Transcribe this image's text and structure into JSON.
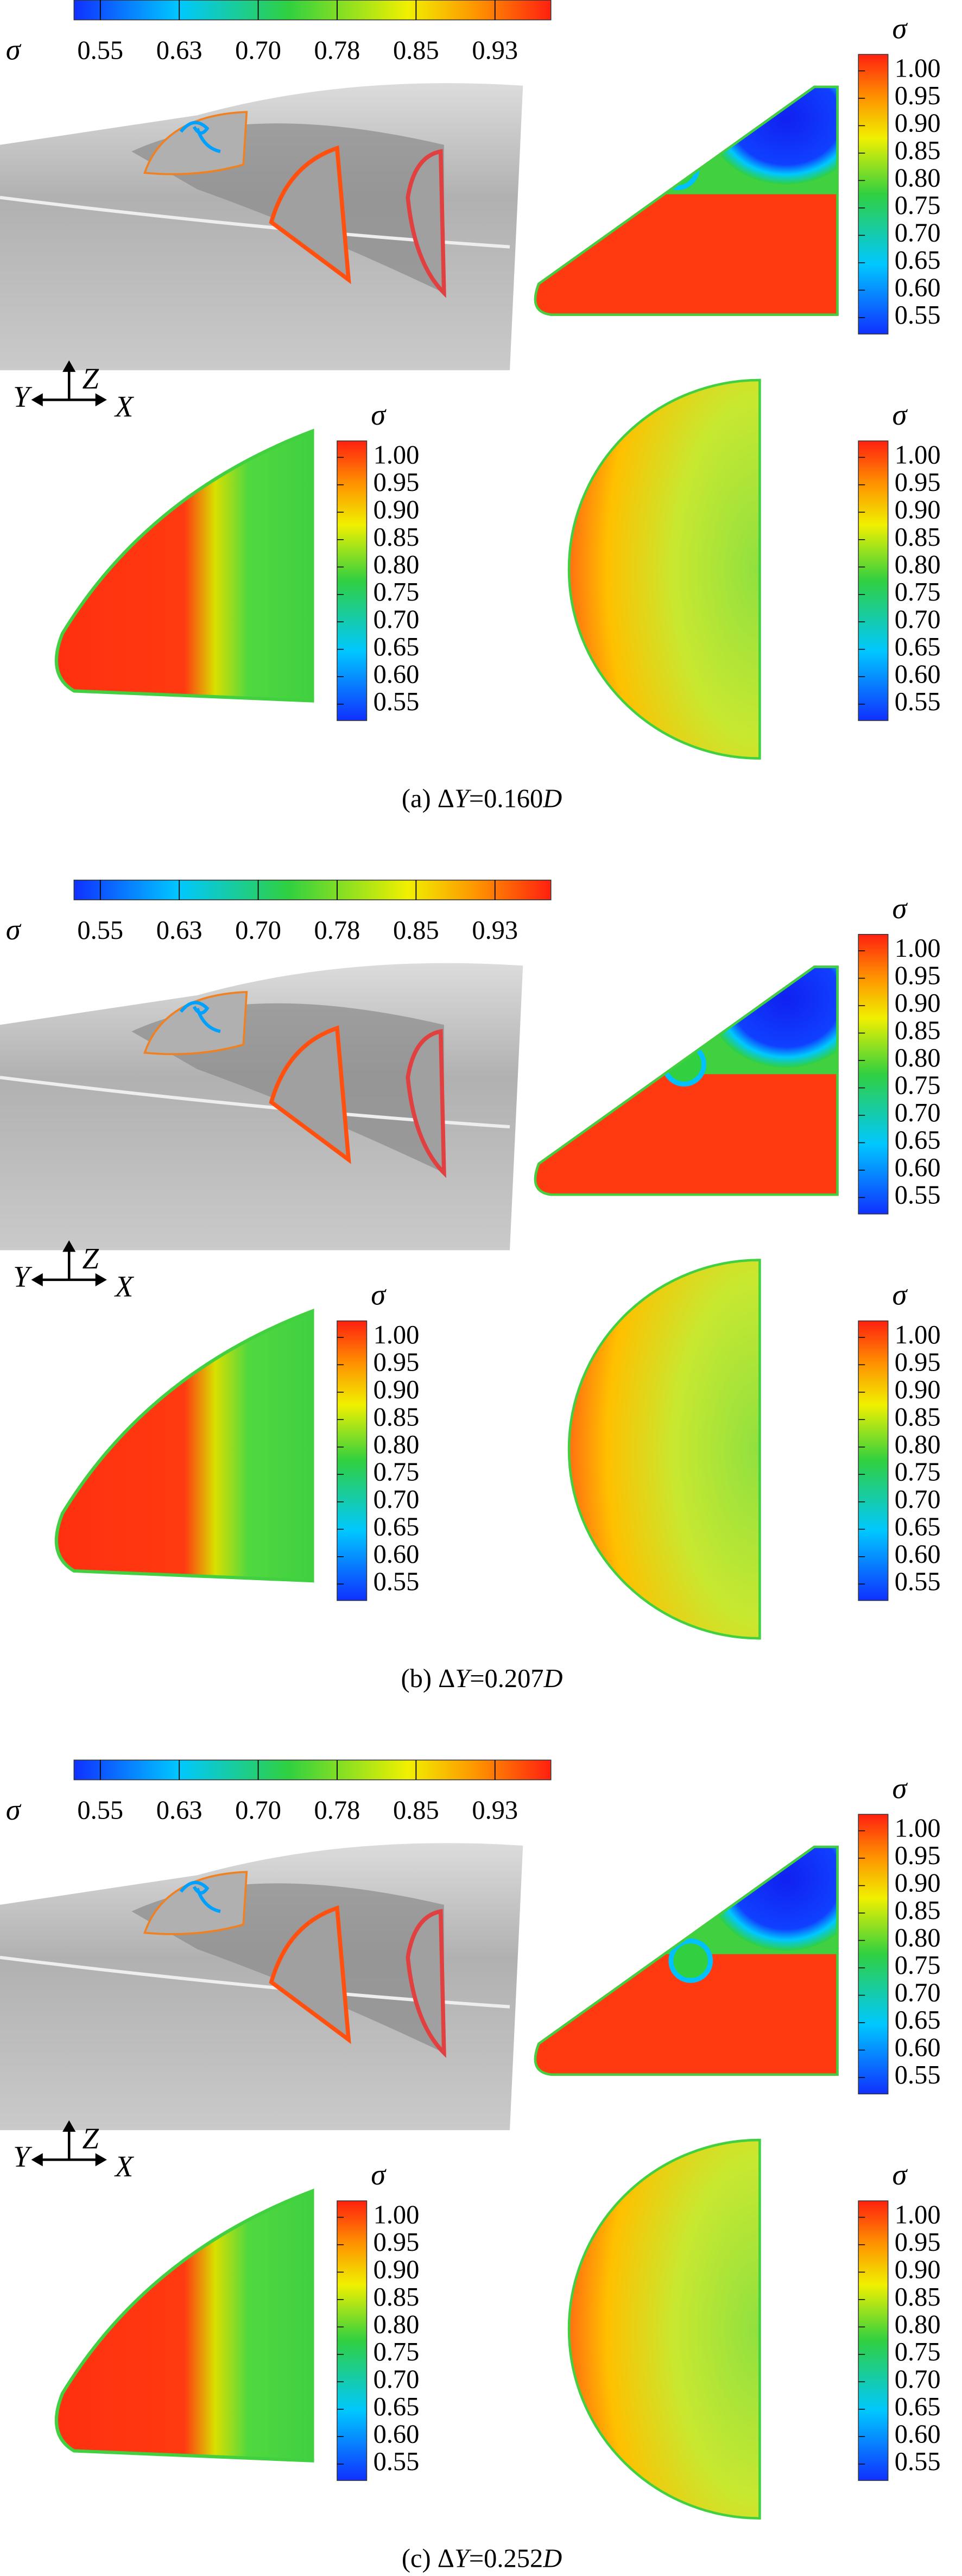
{
  "horizontal_colorbar": {
    "symbol": "σ",
    "ticks": [
      "0.55",
      "0.63",
      "0.70",
      "0.78",
      "0.85",
      "0.93"
    ]
  },
  "vertical_colorbar": {
    "symbol": "σ",
    "ticks": [
      "1.00",
      "0.95",
      "0.90",
      "0.85",
      "0.80",
      "0.75",
      "0.70",
      "0.65",
      "0.60",
      "0.55"
    ]
  },
  "axes": {
    "z": "Z",
    "y": "Y",
    "x": "X"
  },
  "panels": [
    {
      "caption": {
        "label": "(a) Δ",
        "variable": "Y",
        "value": "=0.160",
        "unit": "D"
      }
    },
    {
      "caption": {
        "label": "(b) Δ",
        "variable": "Y",
        "value": "=0.207",
        "unit": "D"
      }
    },
    {
      "caption": {
        "label": "(c) Δ",
        "variable": "Y",
        "value": "=0.252",
        "unit": "D"
      }
    }
  ]
}
